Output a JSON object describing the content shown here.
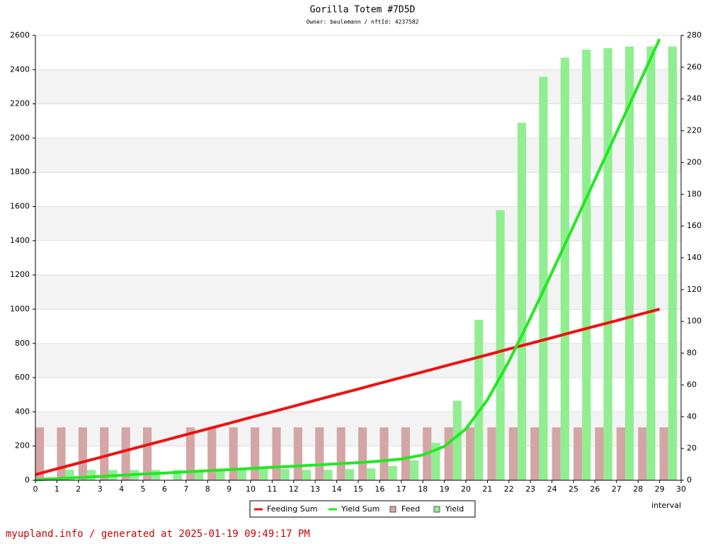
{
  "chart_data": {
    "type": "combo",
    "title": "Gorilla Totem #7D5D",
    "subtitle": "Owner: beulemann / nftId: 4237582",
    "xlabel": "interval",
    "footer": "myupland.info / generated at 2025-01-19 09:49:17 PM",
    "x": [
      0,
      1,
      2,
      3,
      4,
      5,
      6,
      7,
      8,
      9,
      10,
      11,
      12,
      13,
      14,
      15,
      16,
      17,
      18,
      19,
      20,
      21,
      22,
      23,
      24,
      25,
      26,
      27,
      28,
      29
    ],
    "xlim": [
      0,
      30
    ],
    "xticks": [
      0,
      1,
      2,
      3,
      4,
      5,
      6,
      7,
      8,
      9,
      10,
      11,
      12,
      13,
      14,
      15,
      16,
      17,
      18,
      19,
      20,
      21,
      22,
      23,
      24,
      25,
      26,
      27,
      28,
      29,
      30
    ],
    "ylim": [
      0,
      2600
    ],
    "yticks": [
      0,
      200,
      400,
      600,
      800,
      1000,
      1200,
      1400,
      1600,
      1800,
      2000,
      2200,
      2400,
      2600
    ],
    "y2lim": [
      0,
      280
    ],
    "y2ticks": [
      0,
      20,
      40,
      60,
      80,
      100,
      120,
      140,
      160,
      180,
      200,
      220,
      240,
      260,
      280
    ],
    "grid": true,
    "legend": "bottom",
    "series": [
      {
        "name": "Feeding Sum",
        "type": "line",
        "color": "#ee1111",
        "values": [
          33,
          67,
          100,
          133,
          167,
          200,
          233,
          267,
          300,
          333,
          367,
          400,
          433,
          467,
          500,
          533,
          567,
          600,
          633,
          667,
          700,
          733,
          767,
          800,
          833,
          867,
          900,
          933,
          967,
          1000
        ]
      },
      {
        "name": "Yield Sum",
        "type": "line",
        "color": "#22e822",
        "values": [
          2,
          9,
          16,
          22,
          29,
          36,
          42,
          49,
          56,
          62,
          69,
          76,
          82,
          89,
          96,
          103,
          112,
          124,
          148,
          198,
          300,
          470,
          695,
          949,
          1215,
          1486,
          1759,
          2032,
          2305,
          2579
        ]
      },
      {
        "name": "Feed",
        "type": "bar",
        "axis": "y2",
        "color": "#d4a5a5",
        "values": [
          33.3,
          33.3,
          33.3,
          33.3,
          33.3,
          33.3,
          null,
          33.3,
          33.3,
          33.3,
          33.3,
          33.3,
          33.3,
          33.3,
          33.3,
          33.3,
          33.3,
          33.3,
          33.3,
          33.3,
          33.3,
          33.3,
          33.3,
          33.3,
          33.3,
          33.3,
          33.3,
          33.3,
          33.3,
          33.3
        ]
      },
      {
        "name": "Yield",
        "type": "bar",
        "axis": "y2",
        "color": "#90ee90",
        "values": [
          2,
          6.5,
          6.5,
          6.5,
          6.5,
          6.5,
          6.5,
          6.5,
          6.5,
          6.5,
          7,
          7,
          6.5,
          6.5,
          7,
          7.5,
          9,
          12.5,
          23.5,
          50,
          101,
          170,
          225,
          254,
          266,
          271,
          272,
          273,
          273,
          273
        ]
      }
    ]
  }
}
